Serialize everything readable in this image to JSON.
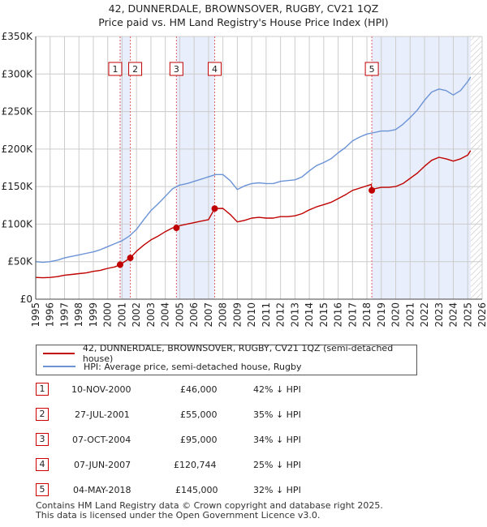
{
  "title_line1": "42, DUNNERDALE, BROWNSOVER, RUGBY, CV21 1QZ",
  "title_line2": "Price paid vs. HM Land Registry's House Price Index (HPI)",
  "legend": {
    "property_label": "42, DUNNERDALE, BROWNSOVER, RUGBY, CV21 1QZ (semi-detached house)",
    "hpi_label": "HPI: Average price, semi-detached house, Rugby"
  },
  "colors": {
    "property": "#c00000",
    "hpi": "#6b93d6",
    "shade": "#e8eefb",
    "vline": "#e06060",
    "hatch": "#bbbbbb",
    "grid": "#cccccc"
  },
  "sales": [
    {
      "num": "1",
      "date": "10-NOV-2000",
      "price": "£46,000",
      "hpi": "42% ↓ HPI"
    },
    {
      "num": "2",
      "date": "27-JUL-2001",
      "price": "£55,000",
      "hpi": "35% ↓ HPI"
    },
    {
      "num": "3",
      "date": "07-OCT-2004",
      "price": "£95,000",
      "hpi": "34% ↓ HPI"
    },
    {
      "num": "4",
      "date": "07-JUN-2007",
      "price": "£120,744",
      "hpi": "25% ↓ HPI"
    },
    {
      "num": "5",
      "date": "04-MAY-2018",
      "price": "£145,000",
      "hpi": "32% ↓ HPI"
    }
  ],
  "footer": {
    "line1": "Contains HM Land Registry data © Crown copyright and database right 2025.",
    "line2": "This data is licensed under the Open Government Licence v3.0."
  },
  "chart_data": {
    "type": "line",
    "title": "42, DUNNERDALE, BROWNSOVER, RUGBY, CV21 1QZ — Price paid vs. HM Land Registry's House Price Index (HPI)",
    "xlabel": "",
    "ylabel": "",
    "xlim": [
      1995,
      2026
    ],
    "ylim": [
      0,
      350000
    ],
    "xticks": [
      "1995",
      "1996",
      "1997",
      "1998",
      "1999",
      "2000",
      "2001",
      "2002",
      "2003",
      "2004",
      "2005",
      "2006",
      "2007",
      "2008",
      "2009",
      "2010",
      "2011",
      "2012",
      "2013",
      "2014",
      "2015",
      "2016",
      "2017",
      "2018",
      "2019",
      "2020",
      "2021",
      "2022",
      "2023",
      "2024",
      "2025",
      "2026"
    ],
    "yticks": [
      {
        "value": 0,
        "label": "£0"
      },
      {
        "value": 50000,
        "label": "£50K"
      },
      {
        "value": 100000,
        "label": "£100K"
      },
      {
        "value": 150000,
        "label": "£150K"
      },
      {
        "value": 200000,
        "label": "£200K"
      },
      {
        "value": 250000,
        "label": "£250K"
      },
      {
        "value": 300000,
        "label": "£300K"
      },
      {
        "value": 350000,
        "label": "£350K"
      }
    ],
    "grid": true,
    "shaded_ranges": [
      [
        2000.86,
        2001.57
      ],
      [
        2004.77,
        2007.43
      ],
      [
        2018.34,
        2025.2
      ]
    ],
    "future_from": 2025.2,
    "series": [
      {
        "name": "HPI: Average price, semi-detached house, Rugby",
        "x": [
          1995,
          1995.5,
          1996,
          1996.5,
          1997,
          1997.5,
          1998,
          1998.5,
          1999,
          1999.5,
          2000,
          2000.5,
          2001,
          2001.5,
          2002,
          2002.5,
          2003,
          2003.5,
          2004,
          2004.5,
          2005,
          2005.5,
          2006,
          2006.5,
          2007,
          2007.5,
          2008,
          2008.5,
          2009,
          2009.5,
          2010,
          2010.5,
          2011,
          2011.5,
          2012,
          2012.5,
          2013,
          2013.5,
          2014,
          2014.5,
          2015,
          2015.5,
          2016,
          2016.5,
          2017,
          2017.5,
          2018,
          2018.5,
          2019,
          2019.5,
          2020,
          2020.5,
          2021,
          2021.5,
          2022,
          2022.5,
          2023,
          2023.5,
          2024,
          2024.5,
          2025,
          2025.2
        ],
        "values": [
          50000,
          49000,
          50000,
          52000,
          55000,
          57000,
          59000,
          61000,
          63000,
          66000,
          70000,
          74000,
          78000,
          84000,
          93000,
          106000,
          118000,
          127000,
          137000,
          147000,
          152000,
          154000,
          157000,
          160000,
          163000,
          166000,
          166000,
          158000,
          146000,
          151000,
          154000,
          155000,
          154000,
          154000,
          157000,
          158000,
          159000,
          163000,
          171000,
          178000,
          182000,
          187000,
          195000,
          202000,
          211000,
          216000,
          220000,
          222000,
          224000,
          224000,
          226000,
          233000,
          242000,
          252000,
          265000,
          276000,
          280000,
          278000,
          272000,
          278000,
          290000,
          296000
        ]
      },
      {
        "name": "42, DUNNERDALE, BROWNSOVER, RUGBY, CV21 1QZ (semi-detached house)",
        "x": [
          1995,
          1995.5,
          1996,
          1996.5,
          1997,
          1997.5,
          1998,
          1998.5,
          1999,
          1999.5,
          2000,
          2000.5,
          2000.86,
          2001,
          2001.57,
          2002,
          2002.5,
          2003,
          2003.5,
          2004,
          2004.5,
          2004.77,
          2005,
          2005.5,
          2006,
          2006.5,
          2007,
          2007.43,
          2008,
          2008.5,
          2009,
          2009.5,
          2010,
          2010.5,
          2011,
          2011.5,
          2012,
          2012.5,
          2013,
          2013.5,
          2014,
          2014.5,
          2015,
          2015.5,
          2016,
          2016.5,
          2017,
          2017.5,
          2018,
          2018.3,
          2018.34,
          2018.5,
          2019,
          2019.5,
          2020,
          2020.5,
          2021,
          2021.5,
          2022,
          2022.5,
          2023,
          2023.5,
          2024,
          2024.5,
          2025,
          2025.2
        ],
        "values": [
          29000,
          28500,
          29000,
          30000,
          32000,
          33000,
          34000,
          35000,
          37000,
          38500,
          41000,
          43000,
          46000,
          48000,
          55000,
          64000,
          72000,
          79000,
          84000,
          90000,
          95000,
          95000,
          98000,
          100000,
          102000,
          104000,
          106000,
          120744,
          121000,
          113000,
          103000,
          105000,
          108000,
          109000,
          108000,
          108000,
          110000,
          110000,
          111000,
          114000,
          119000,
          123000,
          126000,
          129000,
          134000,
          139000,
          145000,
          148000,
          151000,
          153000,
          145000,
          147000,
          149000,
          149000,
          150000,
          154000,
          161000,
          168000,
          177000,
          185000,
          189000,
          187000,
          184000,
          187000,
          192000,
          198000
        ]
      }
    ],
    "sale_points": [
      {
        "label": "1",
        "x": 2000.86,
        "value": 46000
      },
      {
        "label": "2",
        "x": 2001.57,
        "value": 55000
      },
      {
        "label": "3",
        "x": 2004.77,
        "value": 95000
      },
      {
        "label": "4",
        "x": 2007.43,
        "value": 120744
      },
      {
        "label": "5",
        "x": 2018.34,
        "value": 145000
      }
    ]
  }
}
